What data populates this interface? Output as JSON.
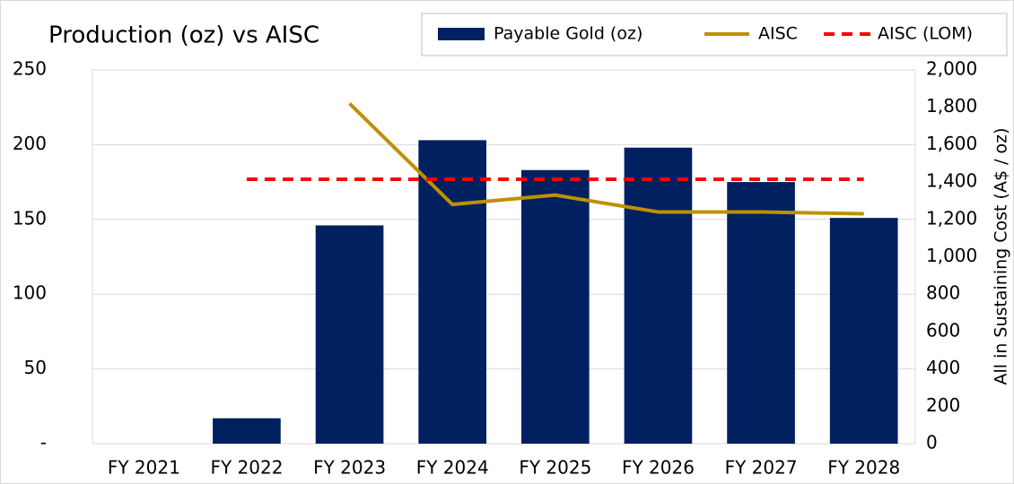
{
  "chart_data": {
    "type": "bar",
    "title": "Production (oz) vs AISC",
    "y2_label": "All in Sustaining Cost (A$ / oz)",
    "categories": [
      "FY 2021",
      "FY 2022",
      "FY 2023",
      "FY 2024",
      "FY 2025",
      "FY 2026",
      "FY 2027",
      "FY 2028"
    ],
    "series": [
      {
        "name": "Payable Gold (oz)",
        "type": "bar",
        "color": "#002060",
        "values": [
          0,
          17,
          146,
          203,
          183,
          198,
          175,
          151
        ]
      },
      {
        "name": "AISC",
        "type": "line",
        "axis": "y2",
        "color": "#bf9000",
        "values": [
          null,
          null,
          1820,
          1280,
          1330,
          1240,
          1240,
          1230
        ]
      },
      {
        "name": "AISC (LOM)",
        "type": "line",
        "axis": "y2",
        "dashed": true,
        "color": "#ff0000",
        "values": [
          null,
          1415,
          1415,
          1415,
          1415,
          1415,
          1415,
          1415
        ]
      }
    ],
    "ylim": [
      0,
      250
    ],
    "yticks": [
      {
        "value": 0,
        "label": "-"
      },
      50,
      100,
      150,
      200,
      250
    ],
    "y2lim": [
      0,
      2000
    ],
    "y2ticks": [
      0,
      200,
      400,
      600,
      800,
      {
        "value": 1000,
        "label": "1,000"
      },
      {
        "value": 1200,
        "label": "1,200"
      },
      {
        "value": 1400,
        "label": "1,400"
      },
      {
        "value": 1600,
        "label": "1,600"
      },
      {
        "value": 1800,
        "label": "1,800"
      },
      {
        "value": 2000,
        "label": "2,000"
      }
    ],
    "grid": true,
    "legend": "top-right"
  }
}
